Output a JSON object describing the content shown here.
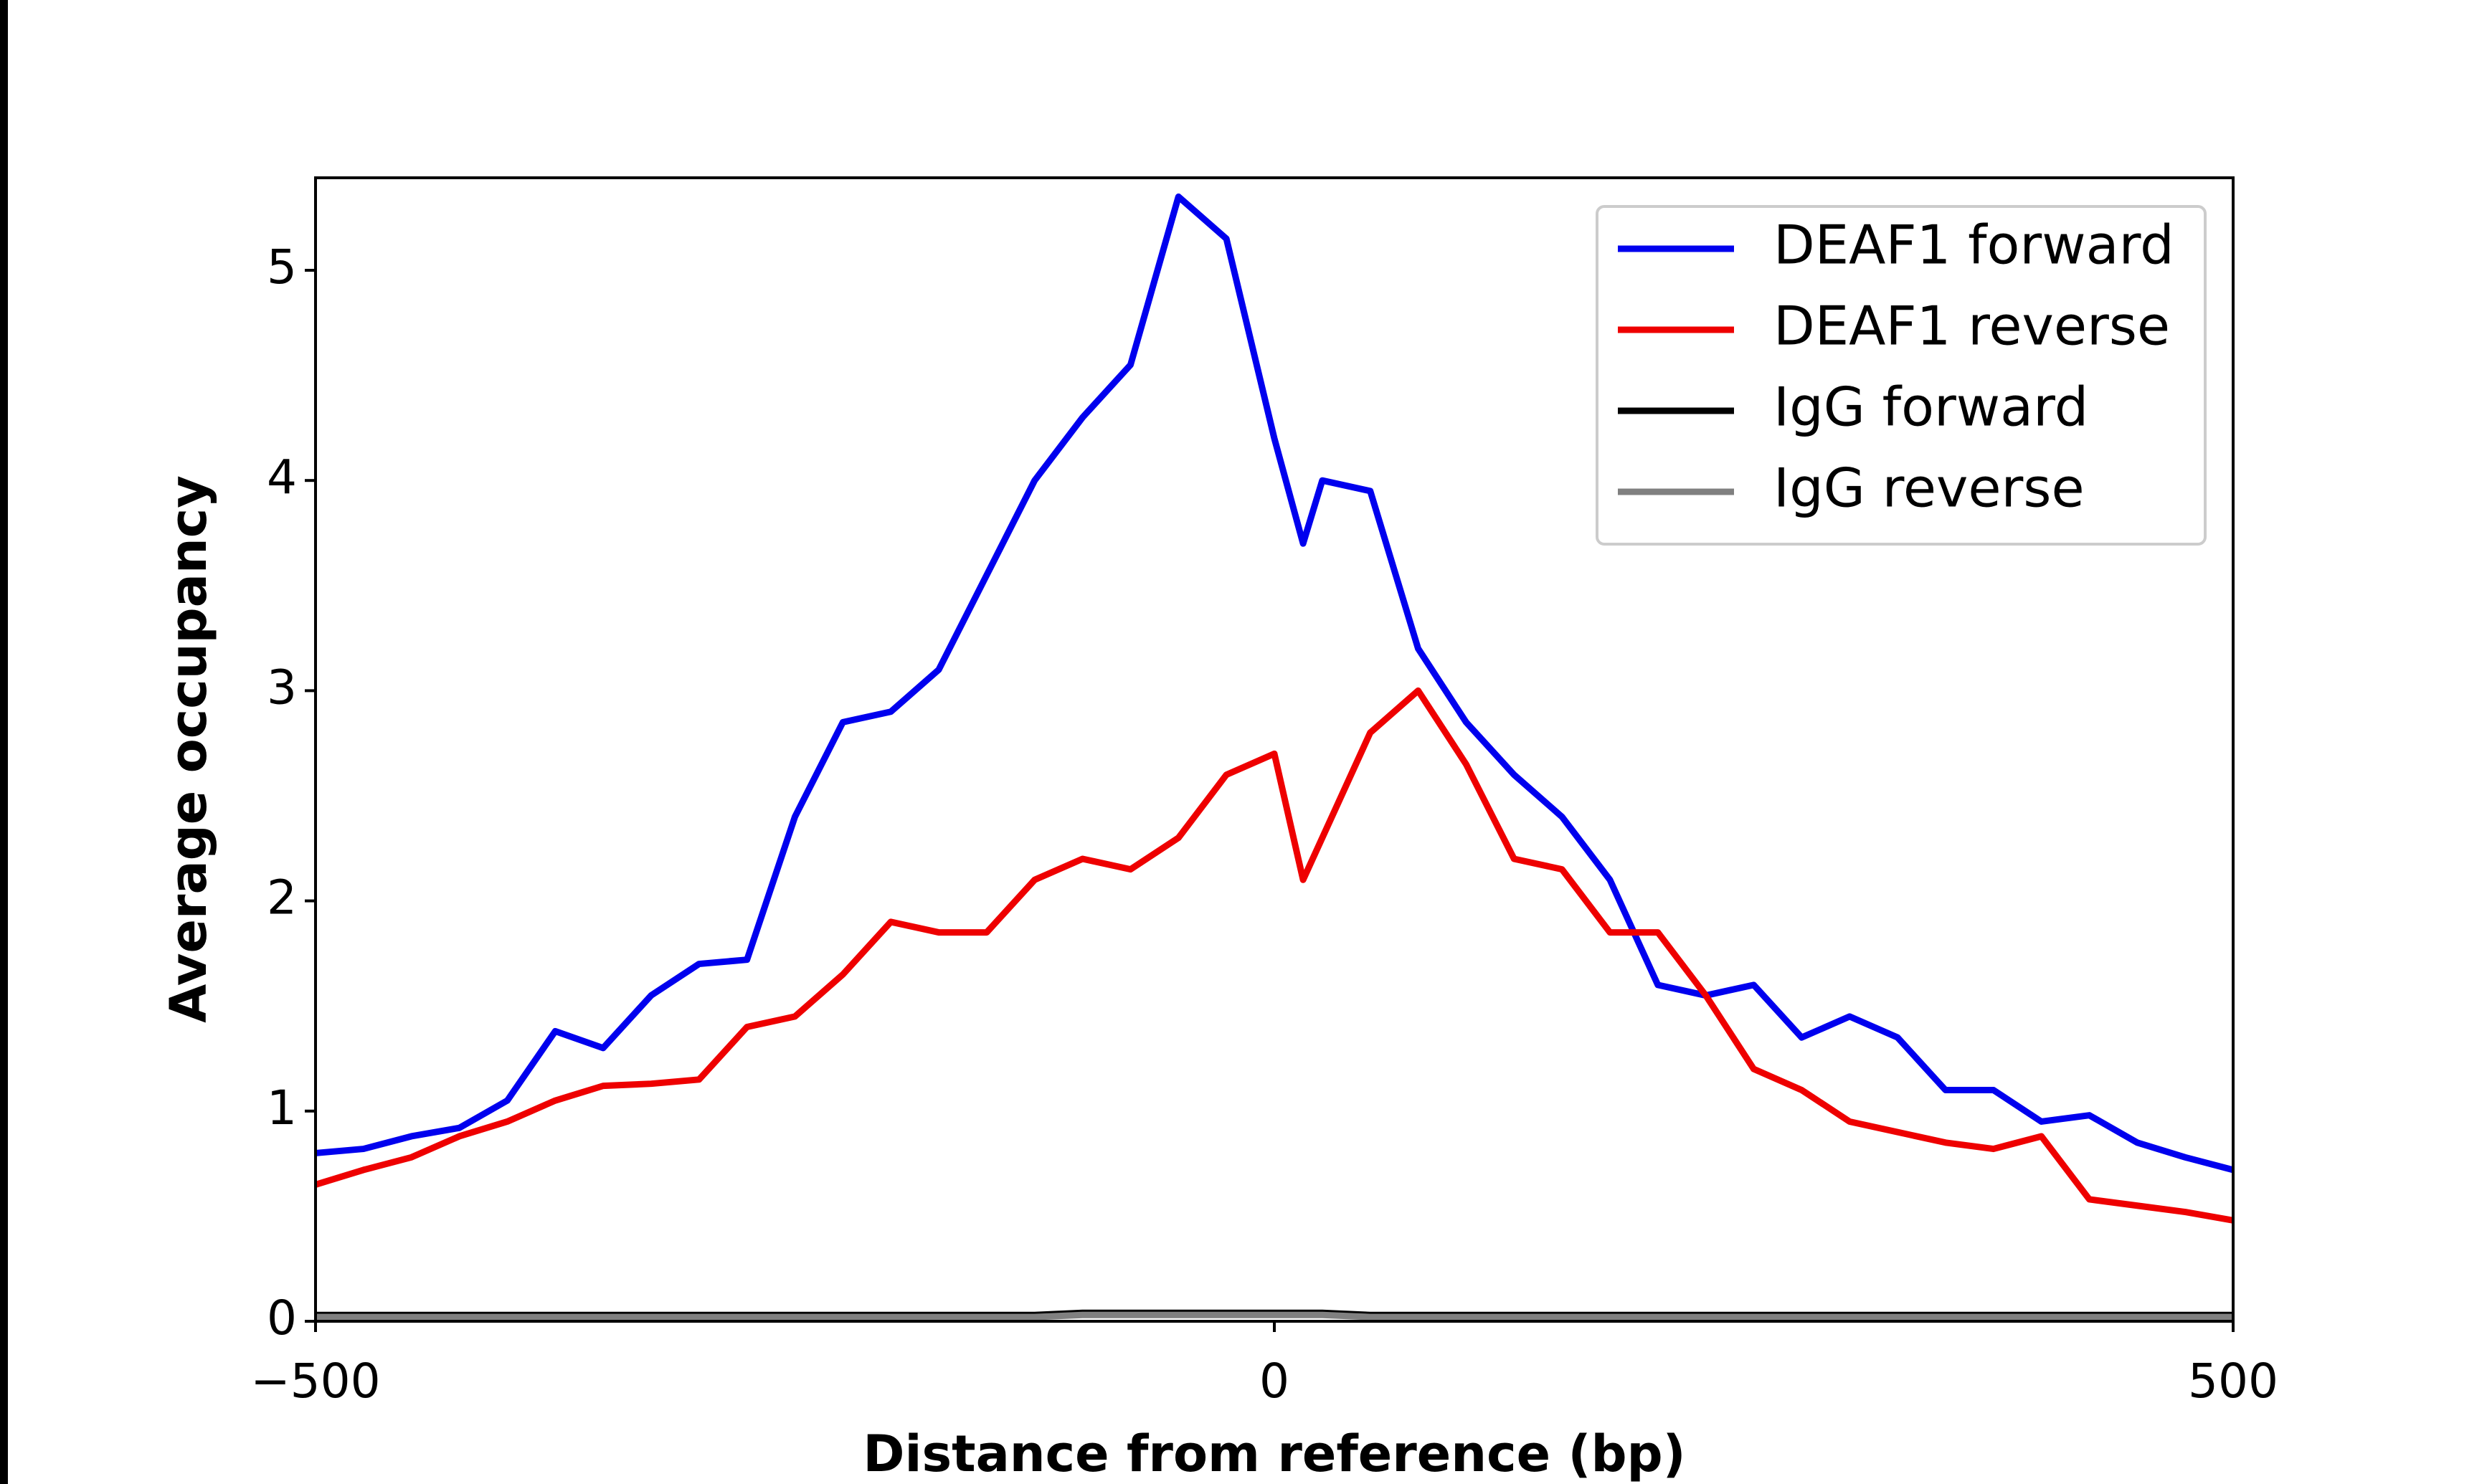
{
  "chart_data": {
    "type": "line",
    "x_label": "Distance from reference (bp)",
    "y_label": "Average occupancy",
    "x": [
      -500,
      -475,
      -450,
      -425,
      -400,
      -375,
      -350,
      -325,
      -300,
      -275,
      -250,
      -225,
      -200,
      -175,
      -150,
      -125,
      -100,
      -75,
      -50,
      -25,
      0,
      15,
      25,
      50,
      75,
      100,
      125,
      150,
      175,
      200,
      225,
      250,
      275,
      300,
      325,
      350,
      375,
      400,
      425,
      450,
      475,
      500
    ],
    "series": [
      {
        "name": "DEAF1 forward",
        "color": "#0000ee",
        "values": [
          0.8,
          0.82,
          0.88,
          0.92,
          1.05,
          1.38,
          1.3,
          1.55,
          1.7,
          1.72,
          2.4,
          2.85,
          2.9,
          3.1,
          3.55,
          4.0,
          4.3,
          4.55,
          5.35,
          5.15,
          4.2,
          3.7,
          4.0,
          3.95,
          3.2,
          2.85,
          2.6,
          2.4,
          2.1,
          1.6,
          1.55,
          1.6,
          1.35,
          1.45,
          1.35,
          1.1,
          1.1,
          0.95,
          0.98,
          0.85,
          0.78,
          0.72
        ]
      },
      {
        "name": "DEAF1 reverse",
        "color": "#ee0000",
        "values": [
          0.65,
          0.72,
          0.78,
          0.88,
          0.95,
          1.05,
          1.12,
          1.13,
          1.15,
          1.4,
          1.45,
          1.65,
          1.9,
          1.85,
          1.85,
          2.1,
          2.2,
          2.15,
          2.3,
          2.6,
          2.7,
          2.1,
          2.3,
          2.8,
          3.0,
          2.65,
          2.2,
          2.15,
          1.85,
          1.85,
          1.55,
          1.2,
          1.1,
          0.95,
          0.9,
          0.85,
          0.82,
          0.88,
          0.58,
          0.55,
          0.52,
          0.48
        ]
      },
      {
        "name": "IgG forward",
        "color": "#000000",
        "values": [
          0.03,
          0.03,
          0.03,
          0.03,
          0.03,
          0.03,
          0.03,
          0.03,
          0.03,
          0.03,
          0.03,
          0.03,
          0.03,
          0.03,
          0.03,
          0.03,
          0.04,
          0.04,
          0.04,
          0.04,
          0.04,
          0.04,
          0.04,
          0.03,
          0.03,
          0.03,
          0.03,
          0.03,
          0.03,
          0.03,
          0.03,
          0.03,
          0.03,
          0.03,
          0.03,
          0.03,
          0.03,
          0.03,
          0.03,
          0.03,
          0.03,
          0.03
        ]
      },
      {
        "name": "IgG reverse",
        "color": "#808080",
        "values": [
          0.02,
          0.02,
          0.02,
          0.02,
          0.02,
          0.02,
          0.02,
          0.02,
          0.02,
          0.02,
          0.02,
          0.02,
          0.02,
          0.02,
          0.02,
          0.02,
          0.03,
          0.03,
          0.03,
          0.03,
          0.03,
          0.03,
          0.03,
          0.02,
          0.02,
          0.02,
          0.02,
          0.02,
          0.02,
          0.02,
          0.02,
          0.02,
          0.02,
          0.02,
          0.02,
          0.02,
          0.02,
          0.02,
          0.02,
          0.02,
          0.02,
          0.02
        ]
      }
    ],
    "xlim": [
      -500,
      500
    ],
    "xticks": [
      {
        "value": -500,
        "label": "−500"
      },
      0,
      500
    ],
    "ylim": [
      0,
      5.44
    ],
    "yticks": [
      0,
      1,
      2,
      3,
      4,
      5
    ],
    "legend": "upper right"
  }
}
